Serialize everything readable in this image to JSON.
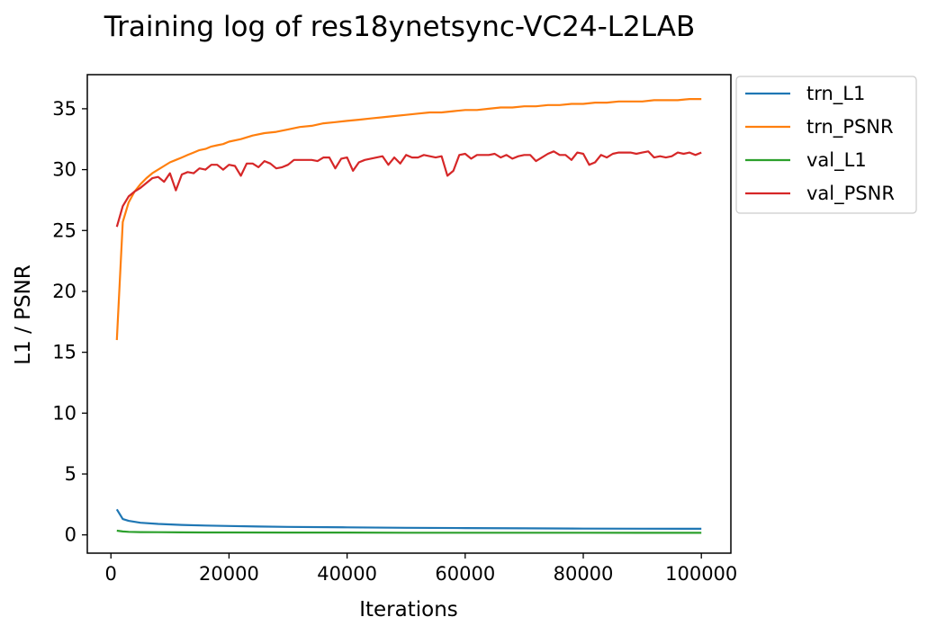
{
  "chart_data": {
    "type": "line",
    "title": "Training log of res18ynetsync-VC24-L2LAB",
    "xlabel": "Iterations",
    "ylabel": "L1 / PSNR",
    "xlim": [
      -4000,
      105000
    ],
    "ylim": [
      -1.5,
      37.8
    ],
    "xticks": [
      0,
      20000,
      40000,
      60000,
      80000,
      100000
    ],
    "xtick_labels": [
      "0",
      "20000",
      "40000",
      "60000",
      "80000",
      "100000"
    ],
    "yticks": [
      0,
      5,
      10,
      15,
      20,
      25,
      30,
      35
    ],
    "ytick_labels": [
      "0",
      "5",
      "10",
      "15",
      "20",
      "25",
      "30",
      "35"
    ],
    "grid": false,
    "legend_position": "outside-top-right",
    "series": [
      {
        "name": "trn_L1",
        "color": "#1f77b4",
        "x": [
          1000,
          2000,
          3000,
          5000,
          8000,
          12000,
          16000,
          20000,
          25000,
          30000,
          40000,
          50000,
          60000,
          70000,
          80000,
          90000,
          100000
        ],
        "values": [
          2.1,
          1.3,
          1.15,
          1.0,
          0.9,
          0.82,
          0.77,
          0.73,
          0.69,
          0.66,
          0.62,
          0.58,
          0.56,
          0.54,
          0.52,
          0.51,
          0.5
        ]
      },
      {
        "name": "trn_PSNR",
        "color": "#ff7f0e",
        "x": [
          1000,
          2000,
          3000,
          4000,
          5000,
          6000,
          7000,
          8000,
          9000,
          10000,
          11000,
          12000,
          13000,
          14000,
          15000,
          16000,
          17000,
          18000,
          19000,
          20000,
          22000,
          24000,
          26000,
          28000,
          30000,
          32000,
          34000,
          36000,
          38000,
          40000,
          42000,
          44000,
          46000,
          48000,
          50000,
          52000,
          54000,
          56000,
          58000,
          60000,
          62000,
          64000,
          66000,
          68000,
          70000,
          72000,
          74000,
          76000,
          78000,
          80000,
          82000,
          84000,
          86000,
          88000,
          90000,
          92000,
          94000,
          96000,
          98000,
          100000
        ],
        "values": [
          16.0,
          25.7,
          27.3,
          28.2,
          28.8,
          29.3,
          29.7,
          30.0,
          30.3,
          30.6,
          30.8,
          31.0,
          31.2,
          31.4,
          31.6,
          31.7,
          31.9,
          32.0,
          32.1,
          32.3,
          32.5,
          32.8,
          33.0,
          33.1,
          33.3,
          33.5,
          33.6,
          33.8,
          33.9,
          34.0,
          34.1,
          34.2,
          34.3,
          34.4,
          34.5,
          34.6,
          34.7,
          34.7,
          34.8,
          34.9,
          34.9,
          35.0,
          35.1,
          35.1,
          35.2,
          35.2,
          35.3,
          35.3,
          35.4,
          35.4,
          35.5,
          35.5,
          35.6,
          35.6,
          35.6,
          35.7,
          35.7,
          35.7,
          35.8,
          35.8
        ]
      },
      {
        "name": "val_L1",
        "color": "#2ca02c",
        "x": [
          1000,
          2000,
          3000,
          5000,
          8000,
          12000,
          16000,
          20000,
          30000,
          40000,
          50000,
          60000,
          70000,
          80000,
          90000,
          100000
        ],
        "values": [
          0.35,
          0.28,
          0.25,
          0.23,
          0.22,
          0.21,
          0.2,
          0.2,
          0.19,
          0.19,
          0.18,
          0.18,
          0.18,
          0.18,
          0.17,
          0.17
        ]
      },
      {
        "name": "val_PSNR",
        "color": "#d62728",
        "x": [
          1000,
          2000,
          3000,
          4000,
          5000,
          6000,
          7000,
          8000,
          9000,
          10000,
          11000,
          12000,
          13000,
          14000,
          15000,
          16000,
          17000,
          18000,
          19000,
          20000,
          21000,
          22000,
          23000,
          24000,
          25000,
          26000,
          27000,
          28000,
          29000,
          30000,
          31000,
          32000,
          33000,
          34000,
          35000,
          36000,
          37000,
          38000,
          39000,
          40000,
          41000,
          42000,
          43000,
          44000,
          45000,
          46000,
          47000,
          48000,
          49000,
          50000,
          51000,
          52000,
          53000,
          54000,
          55000,
          56000,
          57000,
          58000,
          59000,
          60000,
          61000,
          62000,
          63000,
          64000,
          65000,
          66000,
          67000,
          68000,
          69000,
          70000,
          71000,
          72000,
          73000,
          74000,
          75000,
          76000,
          77000,
          78000,
          79000,
          80000,
          81000,
          82000,
          83000,
          84000,
          85000,
          86000,
          87000,
          88000,
          89000,
          90000,
          91000,
          92000,
          93000,
          94000,
          95000,
          96000,
          97000,
          98000,
          99000,
          100000
        ],
        "values": [
          25.3,
          27.0,
          27.8,
          28.2,
          28.5,
          28.9,
          29.3,
          29.4,
          29.0,
          29.7,
          28.3,
          29.6,
          29.8,
          29.7,
          30.1,
          30.0,
          30.4,
          30.4,
          30.0,
          30.4,
          30.3,
          29.5,
          30.5,
          30.5,
          30.2,
          30.7,
          30.5,
          30.1,
          30.2,
          30.4,
          30.8,
          30.8,
          30.8,
          30.8,
          30.7,
          31.0,
          31.0,
          30.1,
          30.9,
          31.0,
          29.9,
          30.6,
          30.8,
          30.9,
          31.0,
          31.1,
          30.4,
          31.0,
          30.5,
          31.2,
          31.0,
          31.0,
          31.2,
          31.1,
          31.0,
          31.1,
          29.5,
          29.9,
          31.2,
          31.3,
          30.9,
          31.2,
          31.2,
          31.2,
          31.3,
          31.0,
          31.2,
          30.9,
          31.1,
          31.2,
          31.2,
          30.7,
          31.0,
          31.3,
          31.5,
          31.2,
          31.2,
          30.8,
          31.4,
          31.3,
          30.4,
          30.6,
          31.2,
          31.0,
          31.3,
          31.4,
          31.4,
          31.4,
          31.3,
          31.4,
          31.5,
          31.0,
          31.1,
          31.0,
          31.1,
          31.4,
          31.3,
          31.4,
          31.2,
          31.4
        ]
      }
    ]
  }
}
